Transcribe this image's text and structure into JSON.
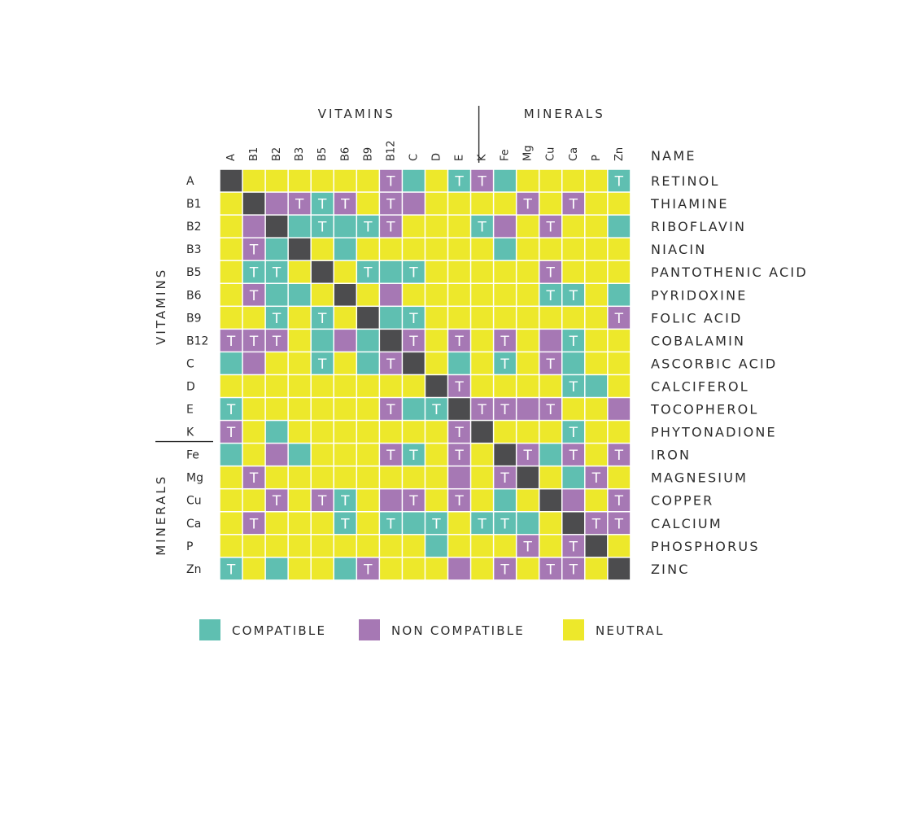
{
  "chart_data": {
    "type": "heatmap",
    "title": "",
    "group_labels": {
      "vitamins": "VITAMINS",
      "minerals": "MINERALS"
    },
    "name_header": "NAME",
    "columns": [
      "A",
      "B1",
      "B2",
      "B3",
      "B5",
      "B6",
      "B9",
      "B12",
      "C",
      "D",
      "E",
      "K",
      "Fe",
      "Mg",
      "Cu",
      "Ca",
      "P",
      "Zn"
    ],
    "rows": [
      "A",
      "B1",
      "B2",
      "B3",
      "B5",
      "B6",
      "B9",
      "B12",
      "C",
      "D",
      "E",
      "K",
      "Fe",
      "Mg",
      "Cu",
      "Ca",
      "P",
      "Zn"
    ],
    "names": [
      "RETINOL",
      "THIAMINE",
      "RIBOFLAVIN",
      "NIACIN",
      "PANTOTHENIC ACID",
      "PYRIDOXINE",
      "FOLIC ACID",
      "COBALAMIN",
      "ASCORBIC ACID",
      "CALCIFEROL",
      "TOCOPHEROL",
      "PHYTONADIONE",
      "IRON",
      "MAGNESIUM",
      "COPPER",
      "CALCIUM",
      "PHOSPHORUS",
      "ZINC"
    ],
    "vitamin_count": 12,
    "mark_text": "T",
    "legend": [
      {
        "key": "C",
        "label": "COMPATIBLE"
      },
      {
        "key": "N",
        "label": "NON COMPATIBLE"
      },
      {
        "key": "Y",
        "label": "NEUTRAL"
      }
    ],
    "colors": {
      "C": "#5fbfb1",
      "N": "#a678b4",
      "Y": "#ede82b",
      "X": "#4c4c4e"
    },
    "matrix": [
      [
        "X",
        "Y",
        "Y",
        "Y",
        "Y",
        "Y",
        "Y",
        "NT",
        "C",
        "Y",
        "CT",
        "NT",
        "C",
        "Y",
        "Y",
        "Y",
        "Y",
        "CT"
      ],
      [
        "Y",
        "X",
        "N",
        "NT",
        "CT",
        "NT",
        "Y",
        "NT",
        "N",
        "Y",
        "Y",
        "Y",
        "Y",
        "NT",
        "Y",
        "NT",
        "Y",
        "Y"
      ],
      [
        "Y",
        "N",
        "X",
        "C",
        "CT",
        "C",
        "CT",
        "NT",
        "Y",
        "Y",
        "Y",
        "CT",
        "N",
        "Y",
        "NT",
        "Y",
        "Y",
        "C"
      ],
      [
        "Y",
        "NT",
        "C",
        "X",
        "Y",
        "C",
        "Y",
        "Y",
        "Y",
        "Y",
        "Y",
        "Y",
        "C",
        "Y",
        "Y",
        "Y",
        "Y",
        "Y"
      ],
      [
        "Y",
        "CT",
        "CT",
        "Y",
        "X",
        "Y",
        "CT",
        "C",
        "CT",
        "Y",
        "Y",
        "Y",
        "Y",
        "Y",
        "NT",
        "Y",
        "Y",
        "Y"
      ],
      [
        "Y",
        "NT",
        "C",
        "C",
        "Y",
        "X",
        "Y",
        "N",
        "Y",
        "Y",
        "Y",
        "Y",
        "Y",
        "Y",
        "CT",
        "CT",
        "Y",
        "C"
      ],
      [
        "Y",
        "Y",
        "CT",
        "Y",
        "CT",
        "Y",
        "X",
        "C",
        "CT",
        "Y",
        "Y",
        "Y",
        "Y",
        "Y",
        "Y",
        "Y",
        "Y",
        "NT"
      ],
      [
        "NT",
        "NT",
        "NT",
        "Y",
        "C",
        "N",
        "C",
        "X",
        "NT",
        "Y",
        "NT",
        "Y",
        "NT",
        "Y",
        "N",
        "CT",
        "Y",
        "Y"
      ],
      [
        "C",
        "N",
        "Y",
        "Y",
        "CT",
        "Y",
        "C",
        "NT",
        "X",
        "Y",
        "C",
        "Y",
        "CT",
        "Y",
        "NT",
        "C",
        "Y",
        "Y"
      ],
      [
        "Y",
        "Y",
        "Y",
        "Y",
        "Y",
        "Y",
        "Y",
        "Y",
        "Y",
        "X",
        "NT",
        "Y",
        "Y",
        "Y",
        "Y",
        "CT",
        "C",
        "Y"
      ],
      [
        "CT",
        "Y",
        "Y",
        "Y",
        "Y",
        "Y",
        "Y",
        "NT",
        "C",
        "CT",
        "X",
        "NT",
        "NT",
        "N",
        "NT",
        "Y",
        "Y",
        "N"
      ],
      [
        "NT",
        "Y",
        "C",
        "Y",
        "Y",
        "Y",
        "Y",
        "Y",
        "Y",
        "Y",
        "NT",
        "X",
        "Y",
        "Y",
        "Y",
        "CT",
        "Y",
        "Y"
      ],
      [
        "C",
        "Y",
        "N",
        "C",
        "Y",
        "Y",
        "Y",
        "NT",
        "CT",
        "Y",
        "NT",
        "Y",
        "X",
        "NT",
        "C",
        "NT",
        "Y",
        "NT"
      ],
      [
        "Y",
        "NT",
        "Y",
        "Y",
        "Y",
        "Y",
        "Y",
        "Y",
        "Y",
        "Y",
        "N",
        "Y",
        "NT",
        "X",
        "Y",
        "C",
        "NT",
        "Y"
      ],
      [
        "Y",
        "Y",
        "NT",
        "Y",
        "NT",
        "CT",
        "Y",
        "N",
        "NT",
        "Y",
        "NT",
        "Y",
        "C",
        "Y",
        "X",
        "N",
        "Y",
        "NT"
      ],
      [
        "Y",
        "NT",
        "Y",
        "Y",
        "Y",
        "CT",
        "Y",
        "CT",
        "C",
        "CT",
        "Y",
        "CT",
        "CT",
        "C",
        "Y",
        "X",
        "NT",
        "NT"
      ],
      [
        "Y",
        "Y",
        "Y",
        "Y",
        "Y",
        "Y",
        "Y",
        "Y",
        "Y",
        "C",
        "Y",
        "Y",
        "Y",
        "NT",
        "Y",
        "NT",
        "X",
        "Y"
      ],
      [
        "CT",
        "Y",
        "C",
        "Y",
        "Y",
        "C",
        "NT",
        "Y",
        "Y",
        "Y",
        "N",
        "Y",
        "NT",
        "Y",
        "NT",
        "NT",
        "Y",
        "X"
      ]
    ]
  }
}
